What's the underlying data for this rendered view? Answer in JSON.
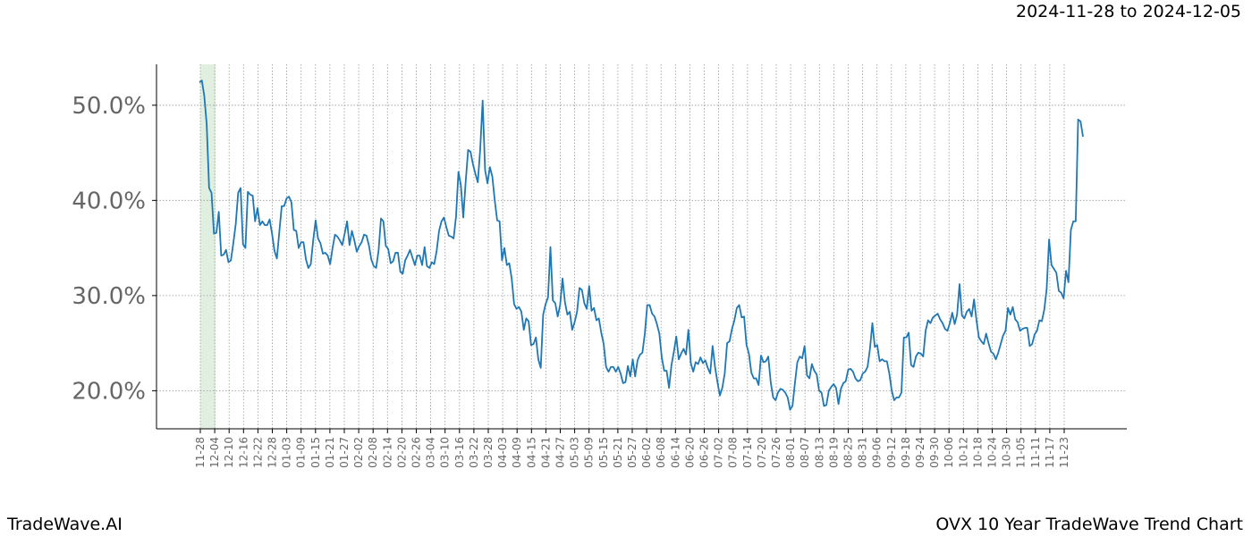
{
  "header": {
    "date_range": "2024-11-28 to 2024-12-05"
  },
  "footer": {
    "brand": "TradeWave.AI",
    "title": "OVX 10 Year TradeWave Trend Chart"
  },
  "colors": {
    "line": "#1f77b4",
    "highlight": "#d6ead6",
    "grid": "#999999",
    "tick_text": "#666666"
  },
  "chart_data": {
    "type": "line",
    "title": "",
    "xlabel": "",
    "ylabel": "",
    "ylim": [
      16.0,
      54.3
    ],
    "y_ticks": [
      20,
      30,
      40,
      50
    ],
    "y_tick_labels": [
      "20.0%",
      "30.0%",
      "40.0%",
      "50.0%"
    ],
    "x_tick_labels": [
      "11-28",
      "12-04",
      "12-10",
      "12-16",
      "12-22",
      "12-28",
      "01-03",
      "01-09",
      "01-15",
      "01-21",
      "01-27",
      "02-02",
      "02-08",
      "02-14",
      "02-20",
      "02-26",
      "03-04",
      "03-10",
      "03-16",
      "03-22",
      "03-28",
      "04-03",
      "04-09",
      "04-15",
      "04-21",
      "04-27",
      "05-03",
      "05-09",
      "05-15",
      "05-21",
      "05-27",
      "06-02",
      "06-08",
      "06-14",
      "06-20",
      "06-26",
      "07-02",
      "07-08",
      "07-14",
      "07-20",
      "07-26",
      "08-01",
      "08-07",
      "08-13",
      "08-19",
      "08-25",
      "08-31",
      "09-06",
      "09-12",
      "09-18",
      "09-24",
      "09-30",
      "10-06",
      "10-12",
      "10-18",
      "10-24",
      "10-30",
      "11-05",
      "11-11",
      "11-17",
      "11-23"
    ],
    "highlight_range": [
      "11-28",
      "12-04"
    ],
    "grid": true,
    "series": [
      {
        "values": [
          52.4,
          52.6,
          51.0,
          48.0,
          41.3,
          40.8,
          36.5,
          36.6,
          38.8,
          34.2,
          34.3,
          34.8,
          33.5,
          33.7,
          35.5,
          37.5,
          40.8,
          41.3,
          35.4,
          35.0,
          40.9,
          40.6,
          40.5,
          37.8,
          39.2,
          37.4,
          37.8,
          37.4,
          37.4,
          38.0,
          36.5,
          34.7,
          33.9,
          36.7,
          39.4,
          39.4,
          40.2,
          40.4,
          39.8,
          36.9,
          36.8,
          35.0,
          35.6,
          35.6,
          33.8,
          32.9,
          33.3,
          35.8,
          37.9,
          36.0,
          35.5,
          34.4,
          34.5,
          34.2,
          33.3,
          35.0,
          36.4,
          36.2,
          35.8,
          35.3,
          36.5,
          37.8,
          35.3,
          36.8,
          35.8,
          34.6,
          35.2,
          35.6,
          36.4,
          36.3,
          35.3,
          33.8,
          33.1,
          32.9,
          34.7,
          38.1,
          37.8,
          35.2,
          34.9,
          33.4,
          33.6,
          34.5,
          34.5,
          32.5,
          32.3,
          33.7,
          34.2,
          34.8,
          34.0,
          33.2,
          34.2,
          34.2,
          33.2,
          35.1,
          33.1,
          32.9,
          33.5,
          33.3,
          34.7,
          36.8,
          37.8,
          38.2,
          37.2,
          36.3,
          36.2,
          36.0,
          38.3,
          43.0,
          41.6,
          38.2,
          42.0,
          45.3,
          45.1,
          43.8,
          42.8,
          41.9,
          45.4,
          50.5,
          43.2,
          41.8,
          43.5,
          42.5,
          40.0,
          37.9,
          37.8,
          33.7,
          35.0,
          33.2,
          33.4,
          31.8,
          29.1,
          28.6,
          28.8,
          28.3,
          26.4,
          27.6,
          27.3,
          24.8,
          24.9,
          25.6,
          23.3,
          22.4,
          28.0,
          29.1,
          29.8,
          35.1,
          29.5,
          29.2,
          27.8,
          29.0,
          31.8,
          29.3,
          28.0,
          28.3,
          26.4,
          27.2,
          28.3,
          30.8,
          30.6,
          29.2,
          28.6,
          31.0,
          28.4,
          28.7,
          27.4,
          27.6,
          26.1,
          24.9,
          22.5,
          22.0,
          22.5,
          22.5,
          22.0,
          22.5,
          21.8,
          20.8,
          20.9,
          22.6,
          21.5,
          23.3,
          21.5,
          23.2,
          23.8,
          24.0,
          26.0,
          29.0,
          29.0,
          28.1,
          27.8,
          27.0,
          26.0,
          23.5,
          22.1,
          22.1,
          20.3,
          22.7,
          24.1,
          25.7,
          23.3,
          23.9,
          24.4,
          23.8,
          26.4,
          22.9,
          22.0,
          23.0,
          22.8,
          23.5,
          22.9,
          23.2,
          22.4,
          21.8,
          24.7,
          22.5,
          20.9,
          19.5,
          20.3,
          21.8,
          25.0,
          25.2,
          26.5,
          27.4,
          28.7,
          29.0,
          27.7,
          27.8,
          24.8,
          23.9,
          21.9,
          21.3,
          21.3,
          20.6,
          23.7,
          23.0,
          23.1,
          23.6,
          20.9,
          19.3,
          19.0,
          19.8,
          20.2,
          20.1,
          19.8,
          19.3,
          18.0,
          18.4,
          20.8,
          23.0,
          23.6,
          23.4,
          24.7,
          21.6,
          21.3,
          22.8,
          22.1,
          21.7,
          20.0,
          19.8,
          18.4,
          18.5,
          20.0,
          20.4,
          20.7,
          20.3,
          18.6,
          20.2,
          20.8,
          21.0,
          22.2,
          22.3,
          22.0,
          21.3,
          21.0,
          21.1,
          21.8,
          22.0,
          22.5,
          24.4,
          27.1,
          24.6,
          24.8,
          23.1,
          23.3,
          23.1,
          23.1,
          21.8,
          20.0,
          19.0,
          19.3,
          19.3,
          19.8,
          25.6,
          25.6,
          26.1,
          22.7,
          22.5,
          23.6,
          24.0,
          23.9,
          23.6,
          26.3,
          27.4,
          27.1,
          27.7,
          27.9,
          28.1,
          27.5,
          27.1,
          26.5,
          26.3,
          27.1,
          28.2,
          27.0,
          28.0,
          31.2,
          27.9,
          27.6,
          28.3,
          28.6,
          27.8,
          29.6,
          27.4,
          25.6,
          25.2,
          24.9,
          26.0,
          25.0,
          24.1,
          23.9,
          23.3,
          24.0,
          24.9,
          25.8,
          26.3,
          28.7,
          28.0,
          28.8,
          27.5,
          27.2,
          26.3,
          26.5,
          26.6,
          26.6,
          24.7,
          24.9,
          25.9,
          26.3,
          27.4,
          27.3,
          28.5,
          30.7,
          35.9,
          33.2,
          32.8,
          32.4,
          30.5,
          30.3,
          29.7,
          32.6,
          31.4,
          36.9,
          37.8,
          37.8,
          48.5,
          48.3,
          46.7
        ]
      }
    ]
  }
}
